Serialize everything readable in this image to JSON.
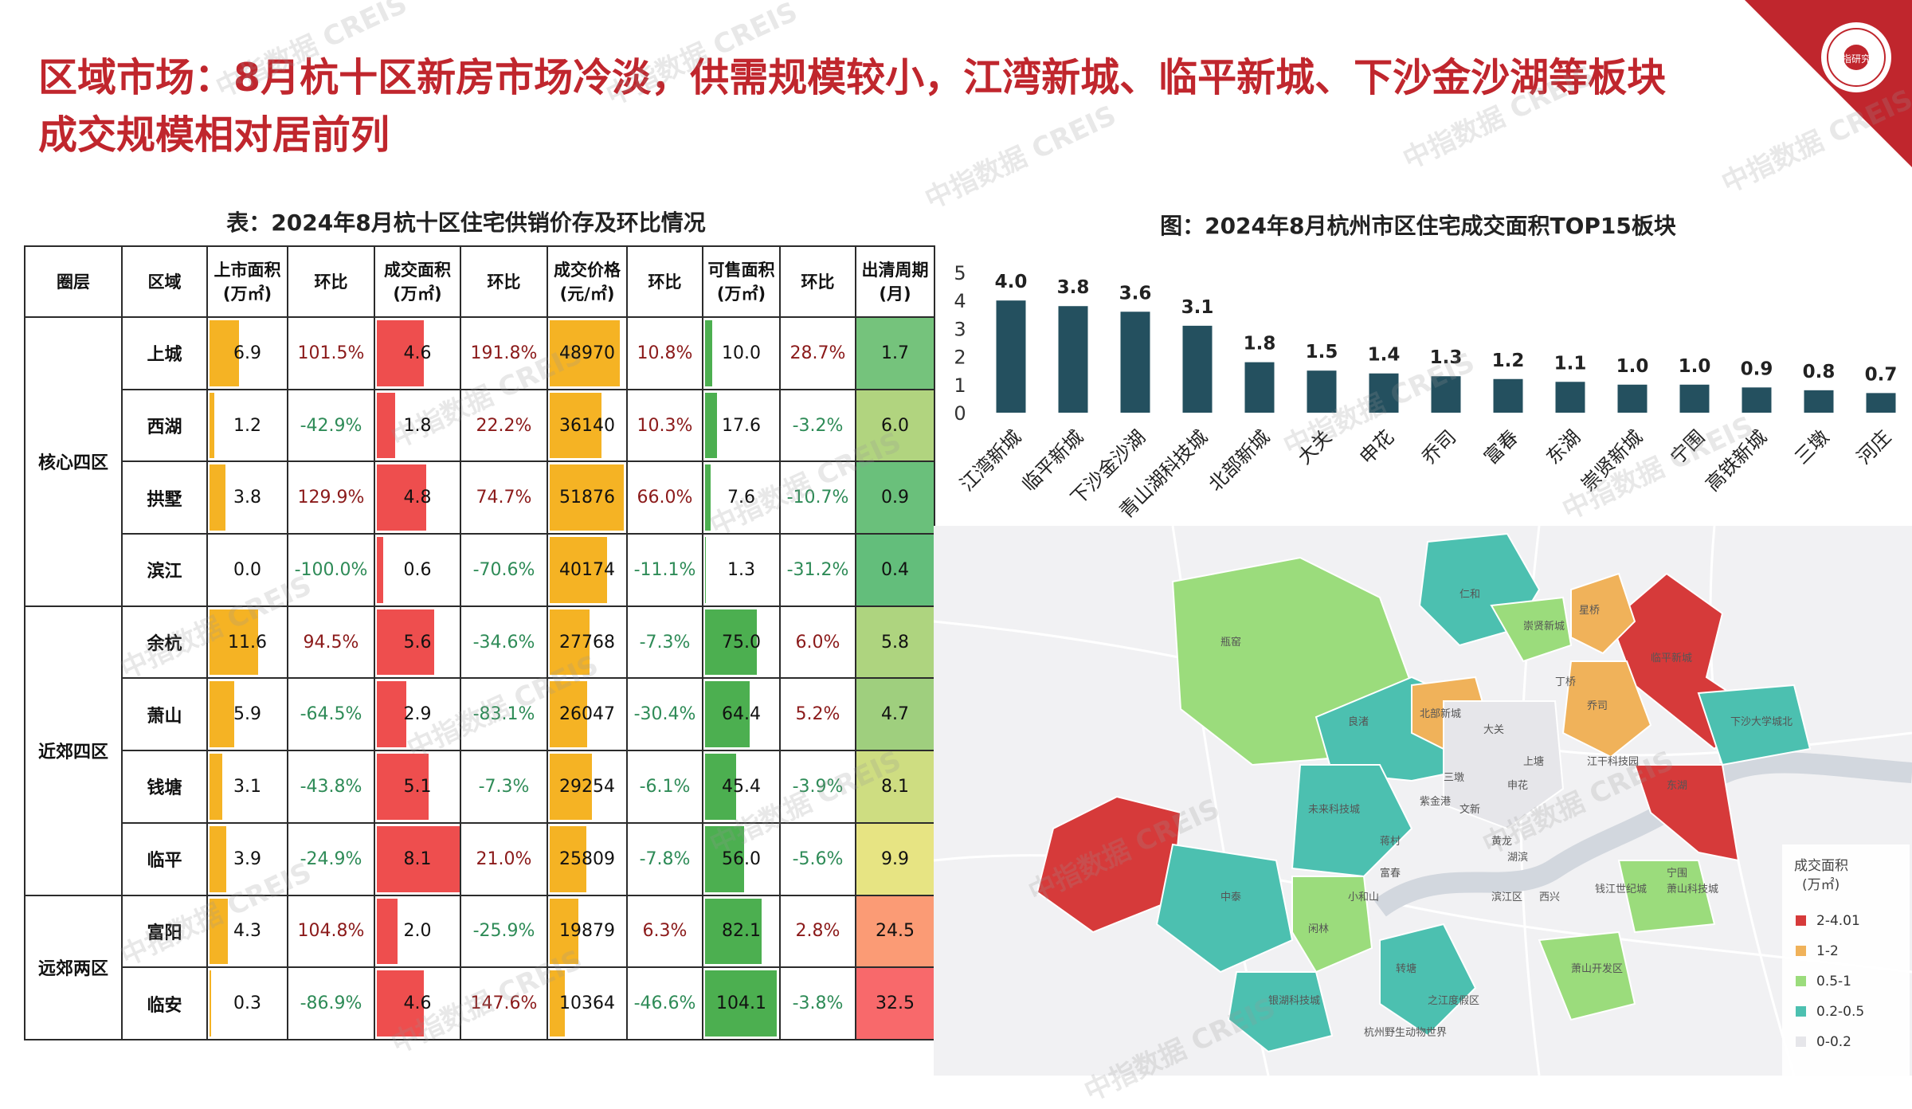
{
  "headline": "区域市场：8月杭十区新房市场冷淡，供需规模较小，江湾新城、临平新城、下沙金沙湖等板块成交规模相对居前列",
  "table": {
    "title": "表：2024年8月杭十区住宅供销价存及环比情况",
    "headers": [
      {
        "line1": "圈层",
        "line2": ""
      },
      {
        "line1": "区域",
        "line2": ""
      },
      {
        "line1": "上市面积",
        "line2": "(万㎡)"
      },
      {
        "line1": "环比",
        "line2": ""
      },
      {
        "line1": "成交面积",
        "line2": "(万㎡)"
      },
      {
        "line1": "环比",
        "line2": ""
      },
      {
        "line1": "成交价格",
        "line2": "(元/㎡)"
      },
      {
        "line1": "环比",
        "line2": ""
      },
      {
        "line1": "可售面积",
        "line2": "(万㎡)"
      },
      {
        "line1": "环比",
        "line2": ""
      },
      {
        "line1": "出清周期",
        "line2": "(月)"
      }
    ],
    "groups": [
      {
        "name": "核心四区",
        "rows": 4
      },
      {
        "name": "近郊四区",
        "rows": 4
      },
      {
        "name": "远郊两区",
        "rows": 2
      }
    ],
    "rows": [
      {
        "region": "上城",
        "supply": "6.9",
        "supply_chg": "101.5%",
        "deal": "4.6",
        "deal_chg": "191.8%",
        "price": "48970",
        "price_chg": "10.8%",
        "stock": "10.0",
        "stock_chg": "28.7%",
        "cycle": "1.7"
      },
      {
        "region": "西湖",
        "supply": "1.2",
        "supply_chg": "-42.9%",
        "deal": "1.8",
        "deal_chg": "22.2%",
        "price": "36140",
        "price_chg": "10.3%",
        "stock": "17.6",
        "stock_chg": "-3.2%",
        "cycle": "6.0"
      },
      {
        "region": "拱墅",
        "supply": "3.8",
        "supply_chg": "129.9%",
        "deal": "4.8",
        "deal_chg": "74.7%",
        "price": "51876",
        "price_chg": "66.0%",
        "stock": "7.6",
        "stock_chg": "-10.7%",
        "cycle": "0.9"
      },
      {
        "region": "滨江",
        "supply": "0.0",
        "supply_chg": "-100.0%",
        "deal": "0.6",
        "deal_chg": "-70.6%",
        "price": "40174",
        "price_chg": "-11.1%",
        "stock": "1.3",
        "stock_chg": "-31.2%",
        "cycle": "0.4"
      },
      {
        "region": "余杭",
        "supply": "11.6",
        "supply_chg": "94.5%",
        "deal": "5.6",
        "deal_chg": "-34.6%",
        "price": "27768",
        "price_chg": "-7.3%",
        "stock": "75.0",
        "stock_chg": "6.0%",
        "cycle": "5.8"
      },
      {
        "region": "萧山",
        "supply": "5.9",
        "supply_chg": "-64.5%",
        "deal": "2.9",
        "deal_chg": "-83.1%",
        "price": "26047",
        "price_chg": "-30.4%",
        "stock": "64.4",
        "stock_chg": "5.2%",
        "cycle": "4.7"
      },
      {
        "region": "钱塘",
        "supply": "3.1",
        "supply_chg": "-43.8%",
        "deal": "5.1",
        "deal_chg": "-7.3%",
        "price": "29254",
        "price_chg": "-6.1%",
        "stock": "45.4",
        "stock_chg": "-3.9%",
        "cycle": "8.1"
      },
      {
        "region": "临平",
        "supply": "3.9",
        "supply_chg": "-24.9%",
        "deal": "8.1",
        "deal_chg": "21.0%",
        "price": "25809",
        "price_chg": "-7.8%",
        "stock": "56.0",
        "stock_chg": "-5.6%",
        "cycle": "9.9"
      },
      {
        "region": "富阳",
        "supply": "4.3",
        "supply_chg": "104.8%",
        "deal": "2.0",
        "deal_chg": "-25.9%",
        "price": "19879",
        "price_chg": "6.3%",
        "stock": "82.1",
        "stock_chg": "2.8%",
        "cycle": "24.5"
      },
      {
        "region": "临安",
        "supply": "0.3",
        "supply_chg": "-86.9%",
        "deal": "4.6",
        "deal_chg": "147.6%",
        "price": "10364",
        "price_chg": "-46.6%",
        "stock": "104.1",
        "stock_chg": "-3.8%",
        "cycle": "32.5"
      }
    ],
    "colors": {
      "supply": "#f5b324",
      "deal": "#ee4e4e",
      "price": "#f5b324",
      "stock": "#4caf50"
    }
  },
  "chart_data": {
    "type": "bar",
    "title": "图：2024年8月杭州市区住宅成交面积TOP15板块",
    "categories": [
      "江湾新城",
      "临平新城",
      "下沙金沙湖",
      "青山湖科技城",
      "北部新城",
      "大关",
      "申花",
      "乔司",
      "富春",
      "东湖",
      "崇贤新城",
      "宁围",
      "高铁新城",
      "三墩",
      "河庄"
    ],
    "values": [
      4.0,
      3.8,
      3.6,
      3.1,
      1.8,
      1.5,
      1.4,
      1.3,
      1.2,
      1.1,
      1.0,
      1.0,
      0.9,
      0.8,
      0.7
    ],
    "data_labels": [
      "4.0",
      "3.8",
      "3.6",
      "3.1",
      "1.8",
      "1.5",
      "1.4",
      "1.3",
      "1.2",
      "1.1",
      "1.0",
      "1.0",
      "0.9",
      "0.8",
      "0.7"
    ],
    "y_ticks": [
      "0",
      "1",
      "2",
      "3",
      "4",
      "5"
    ],
    "ylim": [
      0,
      5
    ],
    "bar_color": "#24505f"
  },
  "map": {
    "legend_title_line1": "成交面积",
    "legend_title_line2": "(万㎡)",
    "legend": [
      {
        "label": "2-4.01",
        "color": "#d63a3a"
      },
      {
        "label": "1-2",
        "color": "#f0b25a"
      },
      {
        "label": "0.5-1",
        "color": "#9bdc7c"
      },
      {
        "label": "0.2-0.5",
        "color": "#4cc0b0"
      },
      {
        "label": "0-0.2",
        "color": "#e6e6ea"
      }
    ],
    "labels": [
      "仁和",
      "良渚",
      "瓶窑",
      "北部新城",
      "大关",
      "上塘",
      "申花",
      "三墩",
      "文新",
      "紫金港",
      "未来科技城",
      "中泰",
      "闲林",
      "小和山",
      "转塘",
      "之江度假区",
      "富春",
      "银湖科技城",
      "萧山科技城",
      "宁围",
      "下沙大学城北",
      "江干科技园",
      "乔司",
      "星桥",
      "临平新城",
      "丁桥",
      "东湖",
      "崇贤新城",
      "蒋村",
      "黄龙",
      "湖滨",
      "萧山开发区",
      "西兴",
      "滨江区",
      "钱江世纪城",
      "杭州野生动物世界"
    ],
    "logo_text": "中指研究院"
  }
}
